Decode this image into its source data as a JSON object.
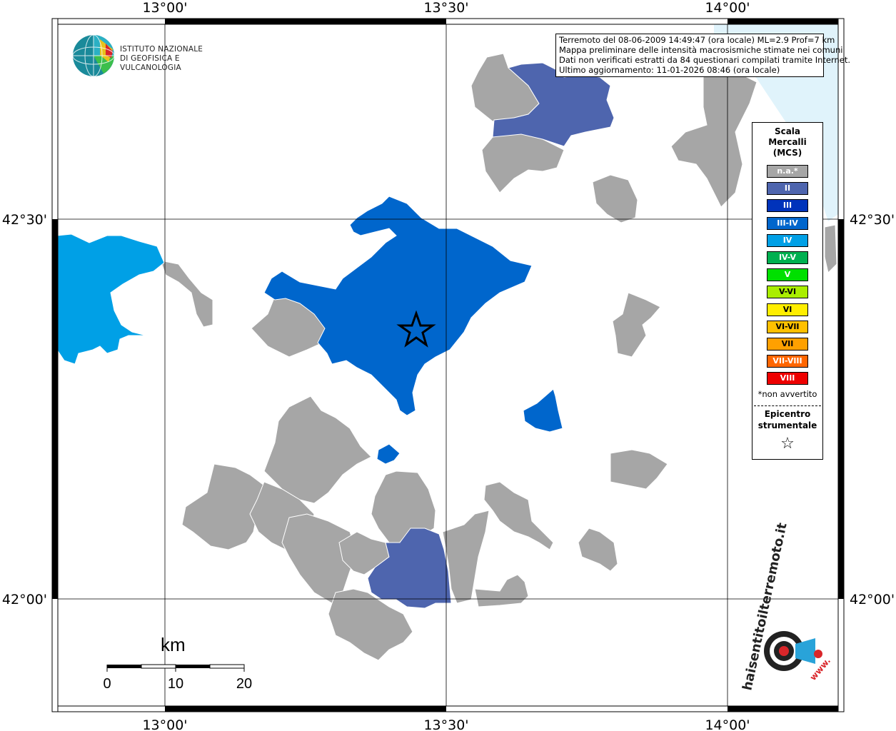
{
  "map": {
    "axis_labels": {
      "top": [
        "13°00'",
        "13°30'",
        "14°00'"
      ],
      "bottom": [
        "13°00'",
        "13°30'",
        "14°00'"
      ],
      "left": [
        "42°30'",
        "42°00'"
      ],
      "right": [
        "42°30'",
        "42°00'"
      ]
    },
    "colors": {
      "na": "#a6a6a6",
      "II": "#4e65ae",
      "III_IV": "#0066cc",
      "IV": "#00a0e6",
      "sea": "#e0f3fb"
    }
  },
  "info_box": {
    "line1": "Terremoto del 08-06-2009 14:49:47 (ora locale) ML=2.9 Prof=7 km",
    "line2": "Mappa preliminare delle intensità macrosismiche stimate nei comuni",
    "line3": "Dati non verificati estratti da 84 questionari compilati tramite Internet.",
    "line4": "Ultimo aggiornamento: 11-01-2026 08:46 (ora locale)"
  },
  "logo_ingv": {
    "line1": "ISTITUTO NAZIONALE",
    "line2": "DI GEOFISICA E VULCANOLOGIA"
  },
  "legend": {
    "title1": "Scala",
    "title2": "Mercalli",
    "title3": "(MCS)",
    "items": [
      {
        "label": "n.a.*",
        "color": "#a6a6a6"
      },
      {
        "label": "II",
        "color": "#4e65ae"
      },
      {
        "label": "III",
        "color": "#0033bb"
      },
      {
        "label": "III-IV",
        "color": "#0066cc"
      },
      {
        "label": "IV",
        "color": "#00a0e6"
      },
      {
        "label": "IV-V",
        "color": "#00b050"
      },
      {
        "label": "V",
        "color": "#00e000"
      },
      {
        "label": "V-VI",
        "color": "#aaee00"
      },
      {
        "label": "VI",
        "color": "#ffee00"
      },
      {
        "label": "VI-VII",
        "color": "#ffc000"
      },
      {
        "label": "VII",
        "color": "#ffa000"
      },
      {
        "label": "VII-VIII",
        "color": "#ff6600"
      },
      {
        "label": "VIII",
        "color": "#ee0000"
      }
    ],
    "note": "*non avvertito",
    "epicentro1": "Epicentro",
    "epicentro2": "strumentale",
    "star": "☆"
  },
  "scalebar": {
    "unit": "km",
    "ticks": [
      "0",
      "10",
      "20"
    ]
  },
  "hs_logo": {
    "text": "haisentitoilterremoto.it",
    "url_text": "www."
  }
}
